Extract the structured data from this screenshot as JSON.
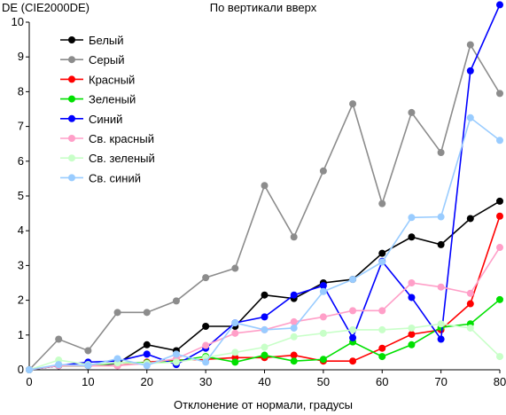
{
  "chart_data": {
    "type": "line",
    "title": "По вертикали вверх",
    "ylabel": "DE (CIE2000DE)",
    "xlabel": "Отклонение от нормали, градусы",
    "xlim": [
      0,
      80
    ],
    "ylim": [
      0,
      10
    ],
    "xticks": [
      0,
      10,
      20,
      30,
      40,
      50,
      60,
      70,
      80
    ],
    "yticks": [
      0,
      1,
      2,
      3,
      4,
      5,
      6,
      7,
      8,
      9,
      10
    ],
    "grid": false,
    "legend_position": "top-left",
    "x": [
      0,
      5,
      10,
      15,
      20,
      25,
      30,
      35,
      40,
      45,
      50,
      55,
      60,
      65,
      70,
      75,
      80
    ],
    "series": [
      {
        "name": "Белый",
        "color": "#000000",
        "values": [
          0,
          0.12,
          0.12,
          0.18,
          0.72,
          0.55,
          1.25,
          1.25,
          2.15,
          2.05,
          2.5,
          2.6,
          3.35,
          3.82,
          3.6,
          4.35,
          4.85
        ]
      },
      {
        "name": "Серый",
        "color": "#8c8c8c",
        "values": [
          0,
          0.88,
          0.55,
          1.65,
          1.65,
          1.98,
          2.65,
          2.92,
          5.3,
          3.82,
          5.72,
          7.65,
          4.78,
          7.4,
          6.25,
          9.35,
          7.95
        ]
      },
      {
        "name": "Красный",
        "color": "#ff0000",
        "values": [
          0,
          0.12,
          0.12,
          0.12,
          0.22,
          0.28,
          0.3,
          0.35,
          0.35,
          0.42,
          0.25,
          0.25,
          0.62,
          1.02,
          1.15,
          1.9,
          4.42
        ]
      },
      {
        "name": "Зеленый",
        "color": "#00e000",
        "values": [
          0,
          0.12,
          0.12,
          0.2,
          0.2,
          0.25,
          0.38,
          0.22,
          0.42,
          0.25,
          0.3,
          0.8,
          0.38,
          0.72,
          1.22,
          1.32,
          2.02
        ]
      },
      {
        "name": "Синий",
        "color": "#0000ff",
        "values": [
          0,
          0.12,
          0.22,
          0.25,
          0.45,
          0.15,
          0.62,
          1.35,
          1.52,
          2.15,
          2.42,
          0.92,
          3.12,
          2.08,
          0.88,
          8.6,
          10.5
        ]
      },
      {
        "name": "Св. красный",
        "color": "#ff9fc8",
        "values": [
          0,
          0.12,
          0.12,
          0.12,
          0.18,
          0.32,
          0.7,
          1.05,
          1.15,
          1.38,
          1.52,
          1.7,
          1.7,
          2.5,
          2.38,
          2.2,
          3.52
        ]
      },
      {
        "name": "Св. зеленый",
        "color": "#c8ffc8",
        "values": [
          0,
          0.28,
          0.15,
          0.2,
          0.18,
          0.22,
          0.35,
          0.5,
          0.65,
          0.95,
          1.05,
          1.15,
          1.15,
          1.2,
          1.32,
          1.2,
          0.38
        ]
      },
      {
        "name": "Св. синий",
        "color": "#99ccff",
        "values": [
          0,
          0.15,
          0.12,
          0.32,
          0.12,
          0.45,
          0.22,
          1.35,
          1.15,
          1.2,
          2.25,
          2.6,
          3.1,
          4.38,
          4.4,
          7.25,
          6.6
        ]
      }
    ]
  }
}
